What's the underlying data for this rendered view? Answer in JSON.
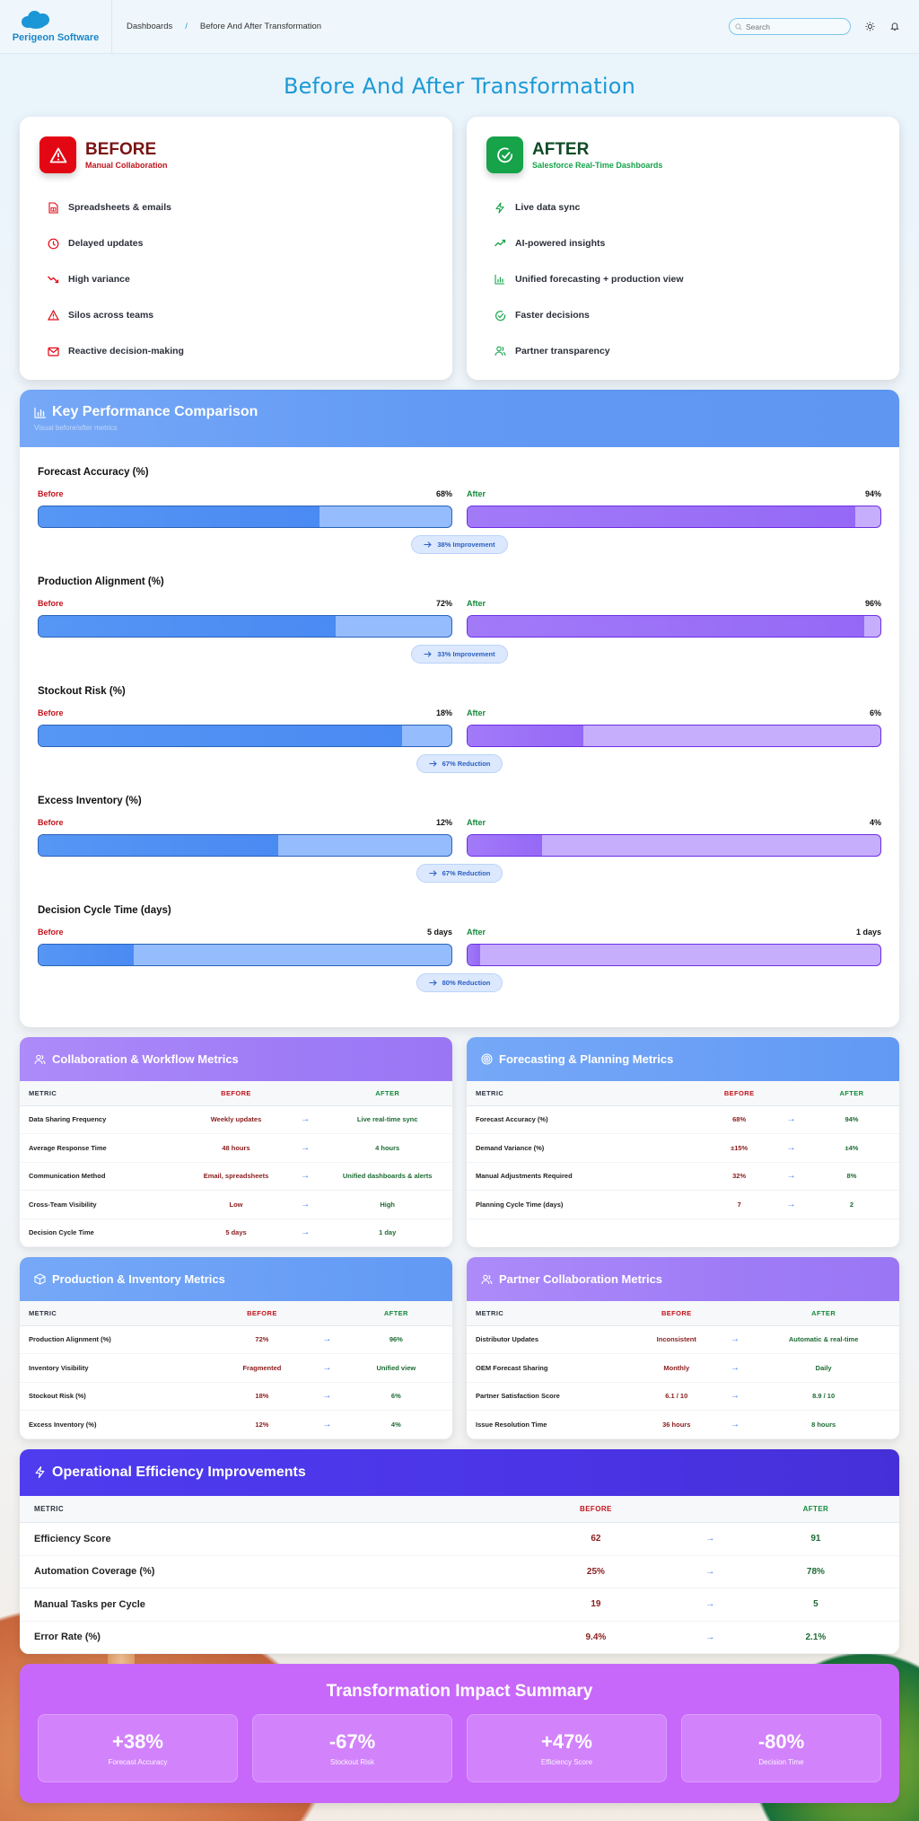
{
  "header": {
    "brand": "Perigeon Software",
    "breadcrumb": [
      "Dashboards",
      "Before And After Transformation"
    ],
    "breadcrumb_separator": "/",
    "search_placeholder": "Search",
    "icons": [
      "search-icon",
      "sun-icon",
      "bell-icon"
    ]
  },
  "page_title": "Before And After Transformation",
  "before_card": {
    "title": "BEFORE",
    "subtitle": "Manual Collaboration",
    "color": "#e30613",
    "items": [
      {
        "icon": "spreadsheet-icon",
        "label": "Spreadsheets & emails"
      },
      {
        "icon": "clock-icon",
        "label": "Delayed updates"
      },
      {
        "icon": "trending-down-icon",
        "label": "High variance"
      },
      {
        "icon": "warning-icon",
        "label": "Silos across teams"
      },
      {
        "icon": "mail-icon",
        "label": "Reactive decision-making"
      }
    ]
  },
  "after_card": {
    "title": "AFTER",
    "subtitle": "Salesforce Real-Time Dashboards",
    "color": "#16a34a",
    "items": [
      {
        "icon": "lightning-icon",
        "label": "Live data sync"
      },
      {
        "icon": "trending-up-icon",
        "label": "AI-powered insights"
      },
      {
        "icon": "bar-chart-icon",
        "label": "Unified forecasting + production view"
      },
      {
        "icon": "check-circle-icon",
        "label": "Faster decisions"
      },
      {
        "icon": "users-icon",
        "label": "Partner transparency"
      }
    ]
  },
  "kpi": {
    "title": "Key Performance Comparison",
    "subtitle": "Visual before/after metrics",
    "before_label": "Before",
    "after_label": "After",
    "metrics": [
      {
        "name": "Forecast Accuracy (%)",
        "before": "68%",
        "after": "94%",
        "before_fill": 0.68,
        "after_fill": 0.94,
        "change": "38% Improvement"
      },
      {
        "name": "Production Alignment (%)",
        "before": "72%",
        "after": "96%",
        "before_fill": 0.72,
        "after_fill": 0.96,
        "change": "33% Improvement"
      },
      {
        "name": "Stockout Risk (%)",
        "before": "18%",
        "after": "6%",
        "before_fill": 0.88,
        "after_fill": 0.28,
        "change": "67% Reduction"
      },
      {
        "name": "Excess Inventory (%)",
        "before": "12%",
        "after": "4%",
        "before_fill": 0.58,
        "after_fill": 0.18,
        "change": "67% Reduction"
      },
      {
        "name": "Decision Cycle Time (days)",
        "before": "5 days",
        "after": "1 days",
        "before_fill": 0.23,
        "after_fill": 0.03,
        "change": "80% Reduction"
      }
    ]
  },
  "tables": {
    "col_metric": "METRIC",
    "col_before": "BEFORE",
    "col_after": "AFTER",
    "collaboration": {
      "title": "Collaboration & Workflow Metrics",
      "rows": [
        {
          "metric": "Data Sharing Frequency",
          "before": "Weekly updates",
          "after": "Live real-time sync"
        },
        {
          "metric": "Average Response Time",
          "before": "48 hours",
          "after": "4 hours"
        },
        {
          "metric": "Communication Method",
          "before": "Email, spreadsheets",
          "after": "Unified dashboards & alerts"
        },
        {
          "metric": "Cross-Team Visibility",
          "before": "Low",
          "after": "High"
        },
        {
          "metric": "Decision Cycle Time",
          "before": "5 days",
          "after": "1 day"
        }
      ]
    },
    "forecasting": {
      "title": "Forecasting & Planning Metrics",
      "rows": [
        {
          "metric": "Forecast Accuracy (%)",
          "before": "68%",
          "after": "94%"
        },
        {
          "metric": "Demand Variance (%)",
          "before": "±15%",
          "after": "±4%"
        },
        {
          "metric": "Manual Adjustments Required",
          "before": "32%",
          "after": "8%"
        },
        {
          "metric": "Planning Cycle Time (days)",
          "before": "7",
          "after": "2"
        }
      ]
    },
    "production": {
      "title": "Production & Inventory Metrics",
      "rows": [
        {
          "metric": "Production Alignment (%)",
          "before": "72%",
          "after": "96%"
        },
        {
          "metric": "Inventory Visibility",
          "before": "Fragmented",
          "after": "Unified view"
        },
        {
          "metric": "Stockout Risk (%)",
          "before": "18%",
          "after": "6%"
        },
        {
          "metric": "Excess Inventory (%)",
          "before": "12%",
          "after": "4%"
        }
      ]
    },
    "partner": {
      "title": "Partner Collaboration Metrics",
      "rows": [
        {
          "metric": "Distributor Updates",
          "before": "Inconsistent",
          "after": "Automatic & real-time"
        },
        {
          "metric": "OEM Forecast Sharing",
          "before": "Monthly",
          "after": "Daily"
        },
        {
          "metric": "Partner Satisfaction Score",
          "before": "6.1 / 10",
          "after": "8.9 / 10"
        },
        {
          "metric": "Issue Resolution Time",
          "before": "36 hours",
          "after": "8 hours"
        }
      ]
    },
    "efficiency": {
      "title": "Operational Efficiency Improvements",
      "rows": [
        {
          "metric": "Efficiency Score",
          "before": "62",
          "after": "91"
        },
        {
          "metric": "Automation Coverage (%)",
          "before": "25%",
          "after": "78%"
        },
        {
          "metric": "Manual Tasks per Cycle",
          "before": "19",
          "after": "5"
        },
        {
          "metric": "Error Rate (%)",
          "before": "9.4%",
          "after": "2.1%"
        }
      ]
    }
  },
  "summary": {
    "title": "Transformation Impact Summary",
    "tiles": [
      {
        "value": "+38%",
        "label": "Forecast Accuracy"
      },
      {
        "value": "-67%",
        "label": "Stockout Risk"
      },
      {
        "value": "+47%",
        "label": "Efficiency Score"
      },
      {
        "value": "-80%",
        "label": "Decision Time"
      }
    ]
  },
  "colors": {
    "title_blue": "#1c9ad6",
    "before_red": "#c0141b",
    "after_green": "#138a3a",
    "kpi_header": "#6199f4",
    "summary_bg": "#c868fb",
    "efficiency_header": "#4a34e6"
  }
}
